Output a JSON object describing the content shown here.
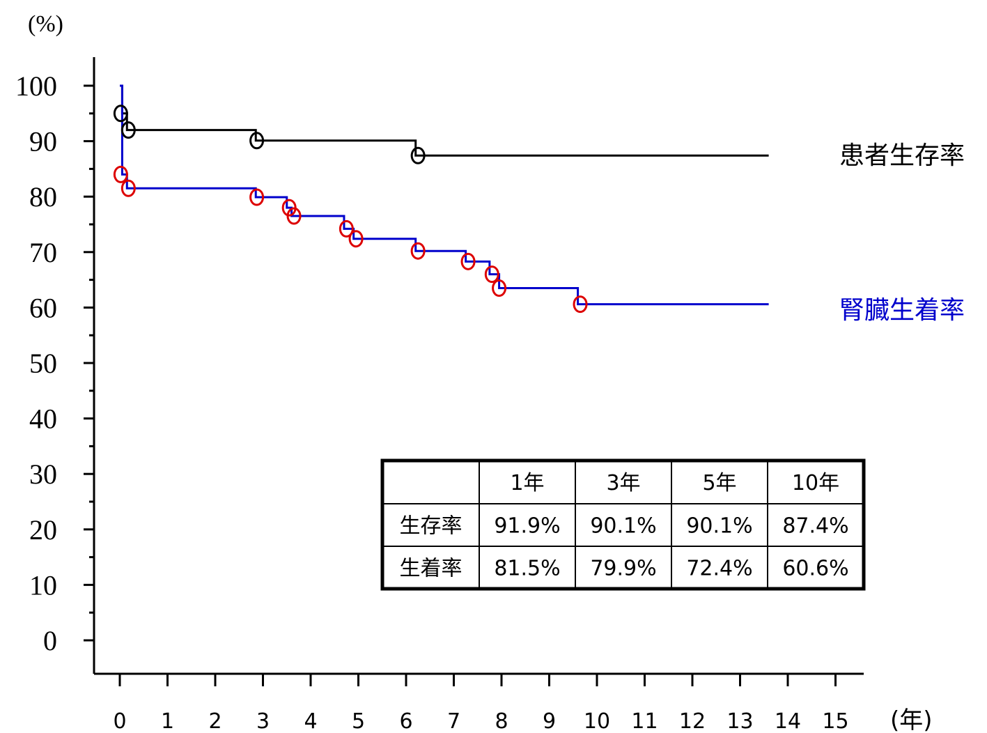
{
  "chart_data": {
    "type": "line",
    "title": "",
    "ylabel": "(%)",
    "xlabel": "(年)",
    "ylim": [
      0,
      100
    ],
    "xlim": [
      0,
      15
    ],
    "yticks": [
      "100",
      "90",
      "80",
      "70",
      "60",
      "50",
      "40",
      "30",
      "20",
      "10",
      "0"
    ],
    "xticks": [
      "0",
      "1",
      "2",
      "3",
      "4",
      "5",
      "6",
      "7",
      "8",
      "9",
      "10",
      "11",
      "12",
      "13",
      "14",
      "15"
    ],
    "grid": false,
    "series": [
      {
        "name": "患者生存率",
        "color": "#000000",
        "marker_color": "#000000",
        "x": [
          0,
          0.05,
          0.15,
          2.85,
          6.2,
          13.6
        ],
        "y": [
          100,
          95,
          92,
          90.1,
          87.4,
          87.4
        ],
        "markers": [
          [
            0.02,
            95
          ],
          [
            0.18,
            92
          ],
          [
            2.87,
            90.1
          ],
          [
            6.25,
            87.4
          ]
        ]
      },
      {
        "name": "腎臓生着率",
        "color": "#0000cc",
        "marker_color": "#dd0000",
        "x": [
          0,
          0.05,
          0.15,
          2.85,
          3.5,
          3.6,
          4.7,
          4.9,
          6.2,
          7.25,
          7.75,
          7.95,
          9.6,
          13.6
        ],
        "y": [
          100,
          84,
          81.5,
          79.9,
          78,
          76.5,
          74.2,
          72.4,
          70.2,
          68.3,
          66,
          63.5,
          60.6,
          60.6
        ],
        "markers": [
          [
            0.02,
            84
          ],
          [
            0.18,
            81.5
          ],
          [
            2.87,
            79.9
          ],
          [
            3.55,
            78
          ],
          [
            3.65,
            76.5
          ],
          [
            4.75,
            74.2
          ],
          [
            4.95,
            72.4
          ],
          [
            6.25,
            70.2
          ],
          [
            7.3,
            68.3
          ],
          [
            7.8,
            66
          ],
          [
            7.95,
            63.5
          ],
          [
            9.65,
            60.6
          ]
        ]
      }
    ],
    "table": {
      "header": [
        "",
        "1年",
        "3年",
        "5年",
        "10年"
      ],
      "rows": [
        [
          "生存率",
          "91.9%",
          "90.1%",
          "90.1%",
          "87.4%"
        ],
        [
          "生着率",
          "81.5%",
          "79.9%",
          "72.4%",
          "60.6%"
        ]
      ]
    }
  }
}
